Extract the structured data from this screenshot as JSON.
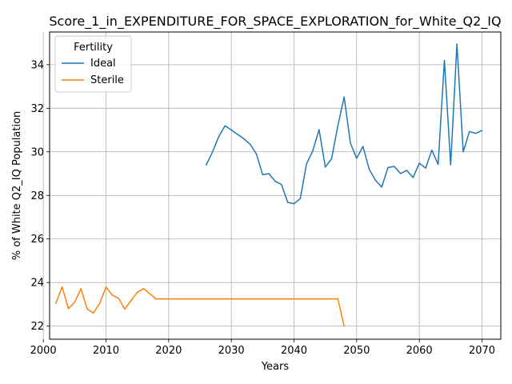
{
  "chart_data": {
    "type": "line",
    "title": "Score_1_in_EXPENDITURE_FOR_SPACE_EXPLORATION_for_White_Q2_IQ",
    "xlabel": "Years",
    "ylabel": "% of White Q2_IQ Population",
    "xlim": [
      2001,
      2073
    ],
    "ylim": [
      21.4,
      35.5
    ],
    "x_ticks": [
      2000,
      2010,
      2020,
      2030,
      2040,
      2050,
      2060,
      2070
    ],
    "y_ticks": [
      22,
      24,
      26,
      28,
      30,
      32,
      34
    ],
    "grid": true,
    "legend": {
      "title": "Fertility",
      "placement": "upper left"
    },
    "series": [
      {
        "name": "Ideal",
        "color": "#1f77b4",
        "x": [
          2026,
          2027,
          2028,
          2029,
          2030,
          2031,
          2032,
          2033,
          2034,
          2035,
          2036,
          2037,
          2038,
          2039,
          2040,
          2041,
          2042,
          2043,
          2044,
          2045,
          2046,
          2047,
          2048,
          2049,
          2050,
          2051,
          2052,
          2053,
          2054,
          2055,
          2056,
          2057,
          2058,
          2059,
          2060,
          2061,
          2062,
          2063,
          2064,
          2065,
          2066,
          2067,
          2068,
          2069,
          2070
        ],
        "y": [
          29.4,
          30.0,
          30.7,
          31.2,
          31.0,
          30.8,
          30.6,
          30.35,
          29.9,
          28.95,
          29.0,
          28.65,
          28.5,
          27.68,
          27.62,
          27.85,
          29.45,
          30.05,
          31.02,
          29.3,
          29.68,
          31.2,
          32.52,
          30.4,
          29.7,
          30.25,
          29.2,
          28.7,
          28.38,
          29.28,
          29.33,
          29.0,
          29.15,
          28.82,
          29.48,
          29.25,
          30.08,
          29.42,
          34.2,
          29.4,
          34.95,
          30.0,
          30.93,
          30.85,
          30.98
        ]
      },
      {
        "name": "Sterile",
        "color": "#ff7f0e",
        "x": [
          2002,
          2003,
          2004,
          2005,
          2006,
          2007,
          2008,
          2009,
          2010,
          2011,
          2012,
          2013,
          2014,
          2015,
          2016,
          2017,
          2018,
          2019,
          2020,
          2025,
          2030,
          2035,
          2040,
          2045,
          2047,
          2048
        ],
        "y": [
          23.05,
          23.8,
          22.8,
          23.1,
          23.72,
          22.78,
          22.6,
          23.05,
          23.8,
          23.42,
          23.28,
          22.78,
          23.18,
          23.55,
          23.72,
          23.48,
          23.25,
          23.25,
          23.25,
          23.25,
          23.25,
          23.25,
          23.25,
          23.25,
          23.25,
          22.0
        ]
      }
    ]
  }
}
